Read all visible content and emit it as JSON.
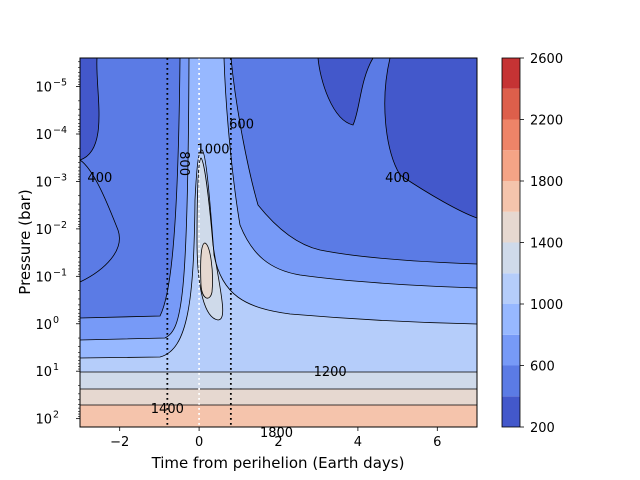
{
  "chart_data": {
    "type": "heatmap",
    "subtype": "filled-contour",
    "title": "",
    "xlabel": "Time from perihelion (Earth days)",
    "ylabel": "Pressure (bar)",
    "xlim": [
      -3,
      7
    ],
    "ylim_bar": [
      150,
      2.5e-06
    ],
    "y_scale": "log",
    "y_inverted": true,
    "x_ticks": [
      {
        "value": -2,
        "label": "−2"
      },
      {
        "value": 0,
        "label": "0"
      },
      {
        "value": 2,
        "label": "2"
      },
      {
        "value": 4,
        "label": "4"
      },
      {
        "value": 6,
        "label": "6"
      }
    ],
    "y_ticks": [
      {
        "exp": -5,
        "base": "10",
        "sup": "−5"
      },
      {
        "exp": -4,
        "base": "10",
        "sup": "−4"
      },
      {
        "exp": -3,
        "base": "10",
        "sup": "−3"
      },
      {
        "exp": -2,
        "base": "10",
        "sup": "−2"
      },
      {
        "exp": -1,
        "base": "10",
        "sup": "−1"
      },
      {
        "exp": 0,
        "base": "10",
        "sup": "0"
      },
      {
        "exp": 1,
        "base": "10",
        "sup": "1"
      },
      {
        "exp": 2,
        "base": "10",
        "sup": "2"
      }
    ],
    "colorbar": {
      "levels": [
        200,
        400,
        600,
        800,
        1000,
        1200,
        1400,
        1600,
        1800,
        2000,
        2200,
        2400,
        2600
      ],
      "colors": [
        "#4358cb",
        "#5b7be5",
        "#779af7",
        "#97b8ff",
        "#b5cdfa",
        "#cfdaea",
        "#e6d8d0",
        "#f5c4ac",
        "#f5a486",
        "#ee8468",
        "#dd5f4b",
        "#c53334"
      ],
      "tick_labels": [
        "200",
        "600",
        "1000",
        "1400",
        "1800",
        "2200",
        "2600"
      ]
    },
    "vertical_markers": [
      {
        "x": -0.8,
        "style": "dotted",
        "color": "#000000"
      },
      {
        "x": 0.0,
        "style": "dotted",
        "color": "#ffffff"
      },
      {
        "x": 0.8,
        "style": "dotted",
        "color": "#000000"
      }
    ],
    "contour_labels": [
      {
        "text": "400",
        "x": -2.5,
        "p": 0.0008
      },
      {
        "text": "800",
        "x": -0.35,
        "p": 0.00042,
        "rotated": true
      },
      {
        "text": "1000",
        "x": 0.35,
        "p": 0.0002
      },
      {
        "text": "600",
        "x": 1.07,
        "p": 6e-05
      },
      {
        "text": "400",
        "x": 5.0,
        "p": 0.0008
      },
      {
        "text": "1400",
        "x": -0.8,
        "p": 60
      },
      {
        "text": "1200",
        "x": 3.3,
        "p": 10
      },
      {
        "text": "1800",
        "x": 1.95,
        "p": 190
      }
    ],
    "temperature_field_k": {
      "deep_atmosphere": [
        {
          "p_min": 1,
          "p_max": 3,
          "value": "1000-1200"
        },
        {
          "p_min": 3,
          "p_max": 20,
          "value": "1200-1400"
        },
        {
          "p_min": 20,
          "p_max": 60,
          "value": "1400-1600"
        },
        {
          "p_min": 60,
          "p_max": 150,
          "value": "1600-1800"
        }
      ],
      "pre_perihelion_upper": "200-600",
      "perihelion_peak": "1400-1600 near x=0.2, p=0.1 bar",
      "post_perihelion_upper": "200-600"
    }
  }
}
